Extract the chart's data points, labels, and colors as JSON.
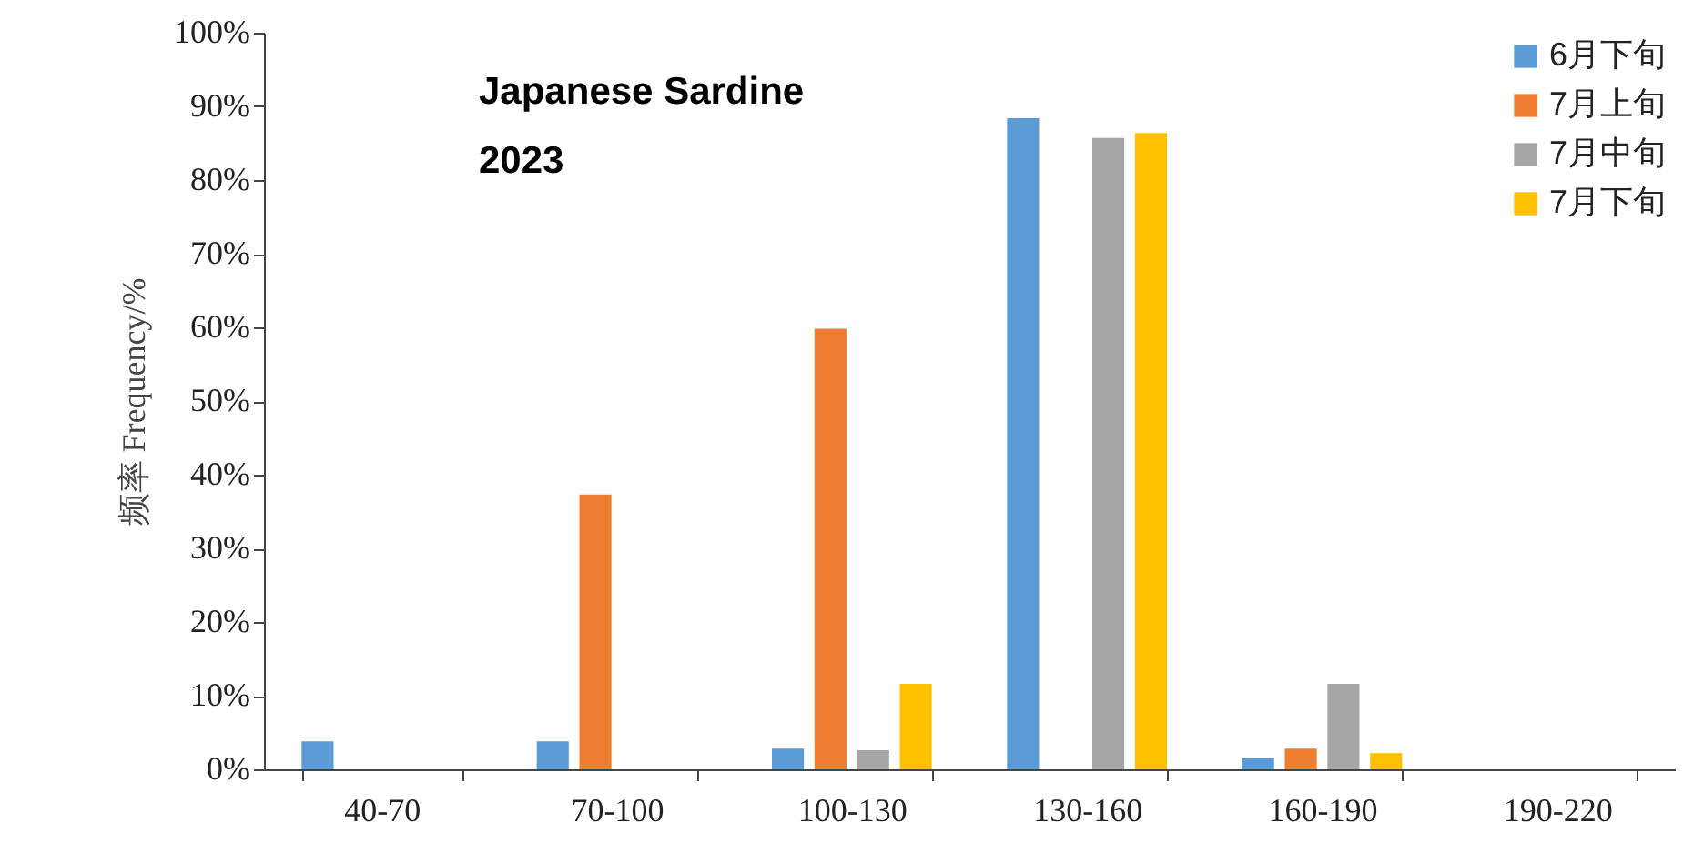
{
  "chart_data": {
    "type": "bar",
    "ylabel": "频率 Frequency/%",
    "annotations": [
      "Japanese Sardine",
      "2023"
    ],
    "categories": [
      "40-70",
      "70-100",
      "100-130",
      "130-160",
      "160-190",
      "190-220"
    ],
    "series": [
      {
        "name": "6月下旬",
        "color": "#5b9bd5",
        "values": [
          3.8,
          3.8,
          2.8,
          88.4,
          1.5,
          0
        ]
      },
      {
        "name": "7月上旬",
        "color": "#ed7d31",
        "values": [
          0,
          37.3,
          59.8,
          0,
          2.8,
          0
        ]
      },
      {
        "name": "7月中旬",
        "color": "#a5a5a5",
        "values": [
          0,
          0,
          2.6,
          85.7,
          11.6,
          0
        ]
      },
      {
        "name": "7月下旬",
        "color": "#ffc000",
        "values": [
          0,
          0,
          11.6,
          86.4,
          2.2,
          0
        ]
      }
    ],
    "ylim": [
      0,
      100
    ],
    "yticks": [
      {
        "value": 0,
        "label": "0%"
      },
      {
        "value": 10,
        "label": "10%"
      },
      {
        "value": 20,
        "label": "20%"
      },
      {
        "value": 30,
        "label": "30%"
      },
      {
        "value": 40,
        "label": "40%"
      },
      {
        "value": 50,
        "label": "50%"
      },
      {
        "value": 60,
        "label": "60%"
      },
      {
        "value": 70,
        "label": "70%"
      },
      {
        "value": 80,
        "label": "80%"
      },
      {
        "value": 90,
        "label": "90%"
      },
      {
        "value": 100,
        "label": "100%"
      }
    ],
    "grid": false,
    "legend": "top right"
  }
}
